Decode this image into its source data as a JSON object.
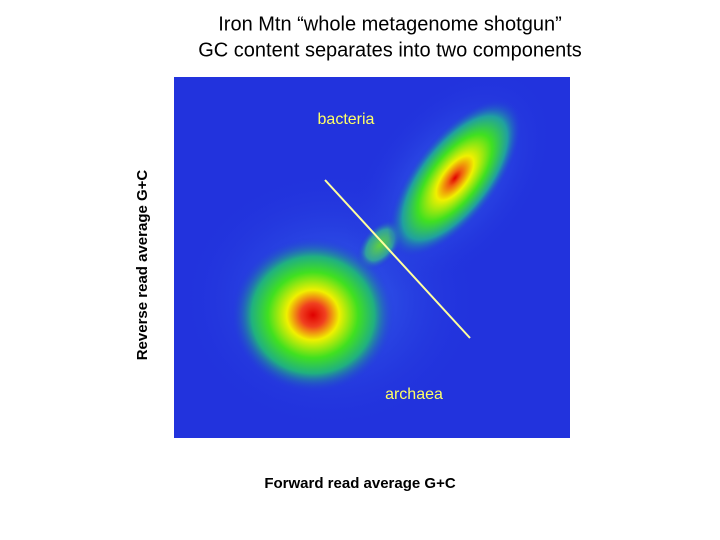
{
  "slide": {
    "title": [
      "Iron Mtn “whole metagenome shotgun”",
      "GC content separates into two components"
    ],
    "y_label": "Reverse read average G+C",
    "x_label": "Forward read average G+C",
    "annotations": [
      "bacteria",
      "archaea"
    ]
  }
}
